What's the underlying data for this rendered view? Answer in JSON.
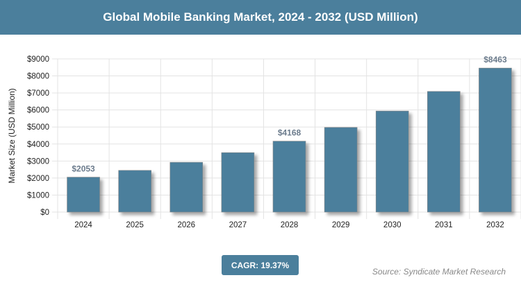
{
  "header": {
    "title": "Global Mobile Banking Market, 2024 - 2032 (USD Million)"
  },
  "footer": {
    "cagr": "CAGR: 19.37%",
    "source": "Source: Syndicate Market Research"
  },
  "colors": {
    "bar": "#4b7f9c",
    "header": "#4b7f9c",
    "label": "#6b7b8c"
  },
  "chart_data": {
    "type": "bar",
    "title": "Global Mobile Banking Market, 2024 - 2032 (USD Million)",
    "xlabel": "",
    "ylabel": "Market Size (USD Million)",
    "categories": [
      "2024",
      "2025",
      "2026",
      "2027",
      "2028",
      "2029",
      "2030",
      "2031",
      "2032"
    ],
    "values": [
      2053,
      2451,
      2926,
      3493,
      4168,
      4976,
      5939,
      7090,
      8463
    ],
    "data_labels": {
      "0": "$2053",
      "4": "$4168",
      "8": "$8463"
    },
    "yticks": [
      "$0",
      "$1000",
      "$2000",
      "$3000",
      "$4000",
      "$5000",
      "$6000",
      "$7000",
      "$8000",
      "$9000"
    ],
    "ylim": [
      0,
      9000
    ],
    "grid": true
  }
}
